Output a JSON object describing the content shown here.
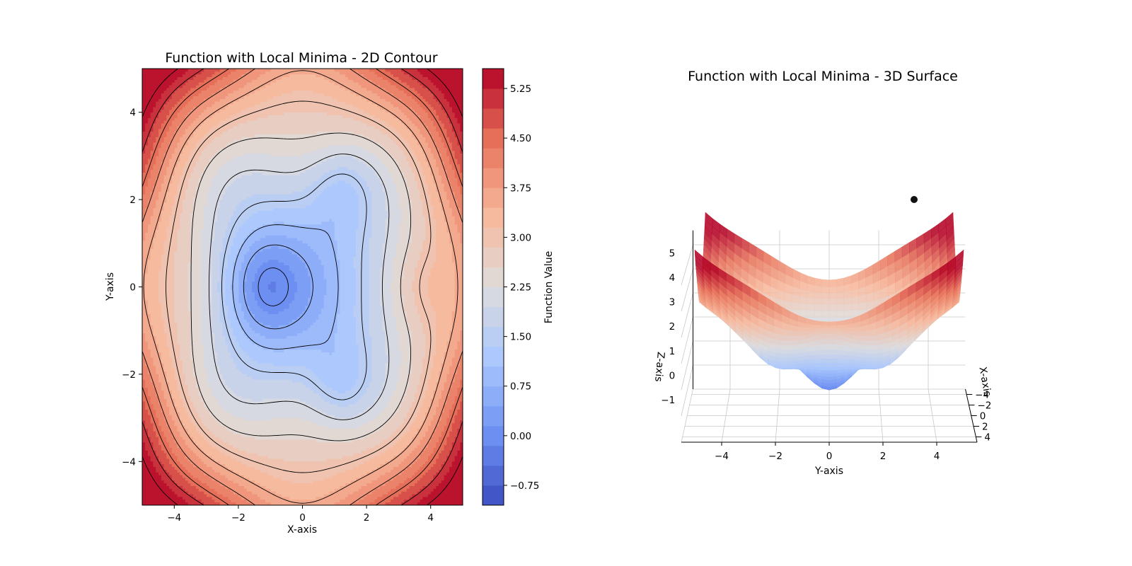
{
  "colors": {
    "colormap": "coolwarm",
    "colormap_stops": [
      "#3b4cc0",
      "#6f92f3",
      "#aac7fd",
      "#dddcdc",
      "#f7b89c",
      "#e7745b",
      "#b40426"
    ],
    "contour_lines": "#000000",
    "grid": "#c8c8c8",
    "marker": "#111111"
  },
  "chart_data": [
    {
      "type": "contour",
      "title": "Function with Local Minima - 2D Contour",
      "xlabel": "X-axis",
      "ylabel": "Y-axis",
      "xlim": [
        -5,
        5
      ],
      "ylim": [
        -5,
        5
      ],
      "x_ticks": [
        -4,
        -2,
        0,
        2,
        4
      ],
      "y_ticks": [
        -4,
        -2,
        0,
        2,
        4
      ],
      "x_tick_labels": [
        "−4",
        "−2",
        "0",
        "2",
        "4"
      ],
      "y_tick_labels": [
        "−4",
        "−2",
        "0",
        "2",
        "4"
      ],
      "grid": false,
      "colorbar": {
        "label": "Function Value",
        "range": [
          -1.05,
          5.55
        ],
        "ticks": [
          -0.75,
          0.0,
          0.75,
          1.5,
          2.25,
          3.0,
          3.75,
          4.5,
          5.25
        ],
        "tick_labels": [
          "−0.75",
          "0.00",
          "0.75",
          "1.50",
          "2.25",
          "3.00",
          "3.75",
          "4.50",
          "5.25"
        ]
      },
      "features": {
        "global_min_region": {
          "x": -1.3,
          "y": 0
        },
        "upper_min": {
          "x": 1.2,
          "y": 2.2
        },
        "lower_min": {
          "x": 1.2,
          "y": -2.2
        },
        "right_bump": {
          "x": 3.8,
          "y": 0
        },
        "closed_contour_center": {
          "x": 2.0,
          "y": 0
        }
      }
    },
    {
      "type": "surface3d",
      "title": "Function with Local Minima - 3D Surface",
      "xlabel": "X-axis",
      "ylabel": "Y-axis",
      "zlabel": "Z-axis",
      "x_ticks": [
        -4,
        -2,
        0,
        2,
        4
      ],
      "y_ticks": [
        -4,
        -2,
        0,
        2,
        4
      ],
      "z_ticks": [
        -1,
        0,
        1,
        2,
        3,
        4,
        5
      ],
      "x_tick_labels": [
        "−4",
        "−2",
        "0",
        "2",
        "4"
      ],
      "y_tick_labels": [
        "−4",
        "−2",
        "0",
        "2",
        "4"
      ],
      "z_tick_labels": [
        "−1",
        "0",
        "1",
        "2",
        "3",
        "4",
        "5"
      ],
      "grid": true,
      "marker_point": {
        "x": -5,
        "y": 3.7,
        "z": 4.0
      }
    }
  ]
}
